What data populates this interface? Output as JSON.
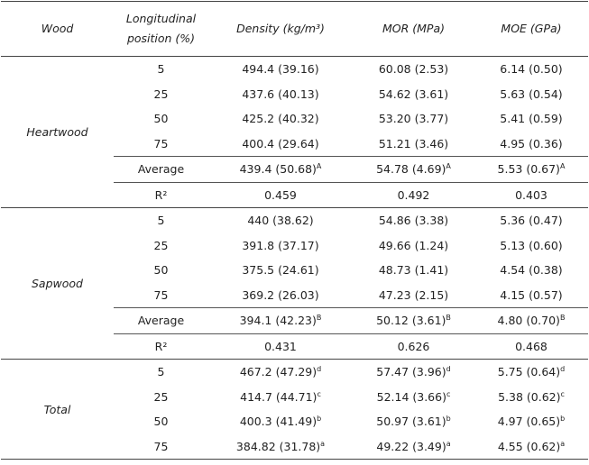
{
  "table": {
    "header": [
      "Wood",
      "Longitudinal position (%)",
      "Density (kg/m³)",
      "MOR (MPa)",
      "MOE (GPa)"
    ],
    "groups": [
      {
        "name": "Heartwood",
        "rows": [
          [
            "5",
            "494.4 (39.16)",
            "60.08 (2.53)",
            "6.14 (0.50)"
          ],
          [
            "25",
            "437.6 (40.13)",
            "54.62 (3.61)",
            "5.63 (0.54)"
          ],
          [
            "50",
            "425.2 (40.32)",
            "53.20 (3.77)",
            "5.41 (0.59)"
          ],
          [
            "75",
            "400.4 (29.64)",
            "51.21 (3.46)",
            "4.95 (0.36)"
          ],
          [
            "Average",
            {
              "text": "439.4 (50.68)",
              "sup": "A"
            },
            {
              "text": "54.78 (4.69)",
              "sup": "A"
            },
            {
              "text": "5.53 (0.67)",
              "sup": "A"
            }
          ],
          [
            "R²",
            "0.459",
            "0.492",
            "0.403"
          ]
        ]
      },
      {
        "name": "Sapwood",
        "rows": [
          [
            "5",
            "440 (38.62)",
            "54.86 (3.38)",
            "5.36 (0.47)"
          ],
          [
            "25",
            "391.8 (37.17)",
            "49.66 (1.24)",
            "5.13 (0.60)"
          ],
          [
            "50",
            "375.5 (24.61)",
            "48.73 (1.41)",
            "4.54 (0.38)"
          ],
          [
            "75",
            "369.2 (26.03)",
            "47.23 (2.15)",
            "4.15 (0.57)"
          ],
          [
            "Average",
            {
              "text": "394.1 (42.23)",
              "sup": "B"
            },
            {
              "text": "50.12 (3.61)",
              "sup": "B"
            },
            {
              "text": "4.80 (0.70)",
              "sup": "B"
            }
          ],
          [
            "R²",
            "0.431",
            "0.626",
            "0.468"
          ]
        ]
      },
      {
        "name": "Total",
        "rows": [
          [
            "5",
            {
              "text": "467.2 (47.29)",
              "sup": "d"
            },
            {
              "text": "57.47 (3.96)",
              "sup": "d"
            },
            {
              "text": "5.75 (0.64)",
              "sup": "d"
            }
          ],
          [
            "25",
            {
              "text": "414.7 (44.71)",
              "sup": "c"
            },
            {
              "text": "52.14 (3.66)",
              "sup": "c"
            },
            {
              "text": "5.38 (0.62)",
              "sup": "c"
            }
          ],
          [
            "50",
            {
              "text": "400.3 (41.49)",
              "sup": "b"
            },
            {
              "text": "50.97 (3.61)",
              "sup": "b"
            },
            {
              "text": "4.97 (0.65)",
              "sup": "b"
            }
          ],
          [
            "75",
            {
              "text": "384.82 (31.78)",
              "sup": "a"
            },
            {
              "text": "49.22 (3.49)",
              "sup": "a"
            },
            {
              "text": "4.55 (0.62)",
              "sup": "a"
            }
          ]
        ]
      }
    ]
  }
}
